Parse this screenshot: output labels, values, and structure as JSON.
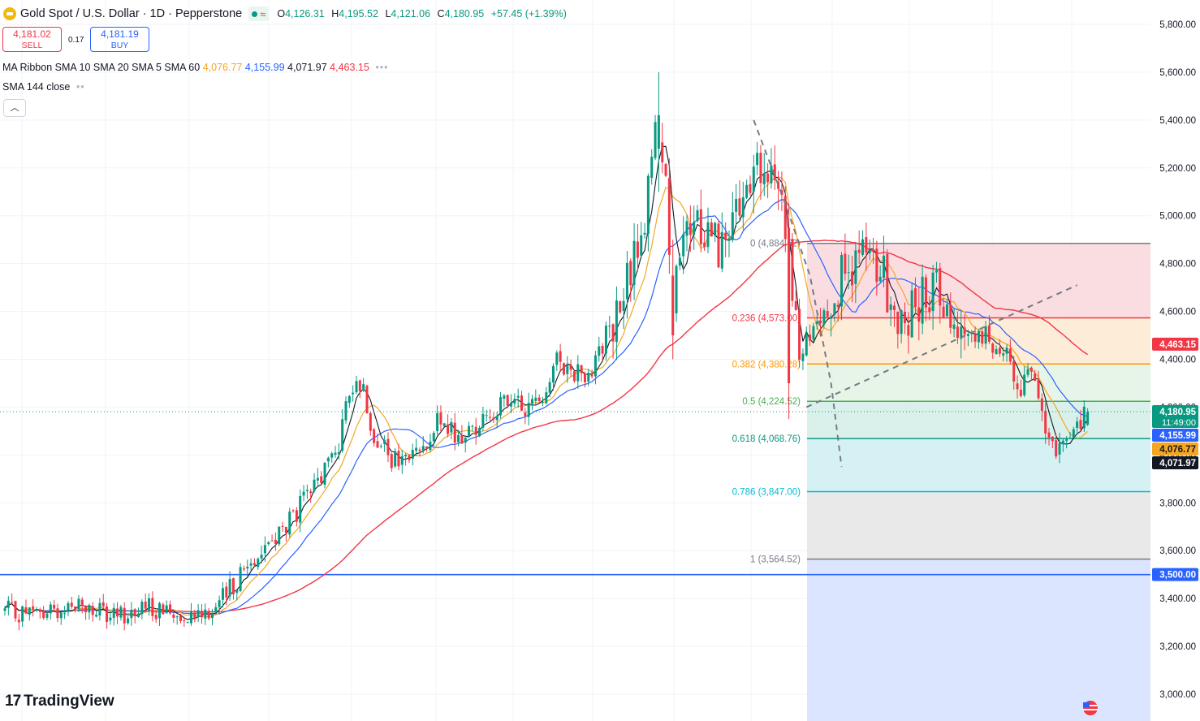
{
  "header": {
    "title": "Gold Spot / U.S. Dollar · 1D · Pepperstone",
    "o_label": "O",
    "o": "4,126.31",
    "h_label": "H",
    "h": "4,195.52",
    "l_label": "L",
    "l": "4,121.06",
    "c_label": "C",
    "c": "4,180.95",
    "change": "+57.45 (+1.39%)"
  },
  "trade": {
    "sell_price": "4,181.02",
    "sell_label": "SELL",
    "spread": "0.17",
    "buy_price": "4,181.19",
    "buy_label": "BUY"
  },
  "indicators": {
    "ma_ribbon": {
      "label": "MA Ribbon",
      "params": "SMA 10 SMA 20 SMA 5 SMA 60",
      "v1": "4,076.77",
      "v2": "4,155.99",
      "v3": "4,071.97",
      "v4": "4,463.15"
    },
    "sma144": {
      "label": "SMA 144 close"
    }
  },
  "colors": {
    "up": "#089981",
    "down": "#f23645",
    "sma5": "#131722",
    "sma10": "#f5a623",
    "sma20": "#2962ff",
    "sma60": "#f23645",
    "hline": "#2962ff"
  },
  "logo_text": "TradingView",
  "chart_data": {
    "type": "candlestick",
    "y_axis": {
      "min": 2900,
      "max": 5900,
      "ticks": [
        "5,800.00",
        "5,600.00",
        "5,400.00",
        "5,200.00",
        "5,000.00",
        "4,800.00",
        "4,600.00",
        "4,400.00",
        "4,200.00",
        "4,000.00",
        "3,800.00",
        "3,600.00",
        "3,400.00",
        "3,200.00",
        "3,000.00"
      ],
      "tick_values": [
        5800,
        5600,
        5400,
        5200,
        5000,
        4800,
        4600,
        4400,
        4200,
        4000,
        3800,
        3600,
        3400,
        3200,
        3000
      ]
    },
    "close_tracks": [
      {
        "from": 0,
        "to": 60,
        "points": [
          [
            0,
            3350
          ],
          [
            10,
            3330
          ],
          [
            20,
            3380
          ],
          [
            30,
            3320
          ],
          [
            40,
            3360
          ],
          [
            50,
            3340
          ],
          [
            60,
            3360
          ]
        ]
      },
      {
        "from": 60,
        "to": 95,
        "points": [
          [
            60,
            3360
          ],
          [
            70,
            3560
          ],
          [
            80,
            3700
          ],
          [
            88,
            3860
          ],
          [
            95,
            4050
          ]
        ]
      },
      {
        "from": 95,
        "to": 130,
        "points": [
          [
            95,
            4050
          ],
          [
            100,
            4360
          ],
          [
            105,
            4100
          ],
          [
            110,
            3960
          ],
          [
            117,
            4000
          ],
          [
            122,
            4130
          ],
          [
            130,
            4070
          ]
        ]
      },
      {
        "from": 130,
        "to": 165,
        "points": [
          [
            130,
            4070
          ],
          [
            140,
            4200
          ],
          [
            150,
            4200
          ],
          [
            158,
            4400
          ],
          [
            165,
            4330
          ]
        ]
      },
      {
        "from": 165,
        "to": 190,
        "points": [
          [
            165,
            4330
          ],
          [
            175,
            4600
          ],
          [
            182,
            5000
          ],
          [
            186,
            5400
          ],
          [
            188,
            5100
          ],
          [
            190,
            4650
          ]
        ]
      },
      {
        "from": 190,
        "to": 215,
        "points": [
          [
            190,
            4650
          ],
          [
            195,
            4950
          ],
          [
            200,
            4950
          ],
          [
            205,
            4850
          ],
          [
            210,
            5050
          ],
          [
            215,
            5200
          ]
        ]
      },
      {
        "from": 215,
        "to": 223,
        "points": [
          [
            215,
            5200
          ],
          [
            218,
            5100
          ],
          [
            221,
            5150
          ],
          [
            223,
            4800
          ]
        ]
      },
      {
        "from": 223,
        "to": 245,
        "points": [
          [
            223,
            4800
          ],
          [
            226,
            4400
          ],
          [
            230,
            4520
          ],
          [
            235,
            4680
          ],
          [
            240,
            4770
          ],
          [
            245,
            4840
          ]
        ]
      },
      {
        "from": 245,
        "to": 270,
        "points": [
          [
            245,
            4840
          ],
          [
            250,
            4730
          ],
          [
            255,
            4520
          ],
          [
            260,
            4650
          ],
          [
            265,
            4720
          ],
          [
            270,
            4560
          ]
        ]
      },
      {
        "from": 270,
        "to": 297,
        "points": [
          [
            270,
            4560
          ],
          [
            275,
            4500
          ],
          [
            280,
            4480
          ],
          [
            285,
            4450
          ],
          [
            288,
            4250
          ],
          [
            292,
            4320
          ],
          [
            297,
            4100
          ]
        ]
      },
      {
        "from": 297,
        "to": 308,
        "points": [
          [
            297,
            4100
          ],
          [
            300,
            4010
          ],
          [
            303,
            4060
          ],
          [
            306,
            4140
          ],
          [
            308,
            4181
          ]
        ]
      }
    ],
    "special_candles": [
      {
        "i": 186,
        "open": 5280,
        "high": 5600,
        "low": 5100,
        "close": 5420
      },
      {
        "i": 190,
        "open": 4750,
        "high": 4900,
        "low": 4400,
        "close": 4500
      },
      {
        "i": 223,
        "open": 4950,
        "high": 5050,
        "low": 4150,
        "close": 4300
      },
      {
        "i": 308,
        "open": 4126.31,
        "high": 4195.52,
        "low": 4121.06,
        "close": 4180.95
      }
    ],
    "sma5_value": 4071.97,
    "sma10_value": 4076.77,
    "sma20_value": 4155.99,
    "sma60_value": 4463.15,
    "horizontal_line": {
      "value": 3500,
      "label": "3,500.00"
    },
    "fibonacci": {
      "start_value": 4884.52,
      "levels": [
        {
          "ratio": "0",
          "value": 4884.52,
          "label": "0 (4,884.52)",
          "color": "#787b86",
          "fill": "#f8d7da"
        },
        {
          "ratio": "0.236",
          "value": 4573.0,
          "label": "0.236 (4,573.00)",
          "color": "#f23645",
          "fill": "#fde9d1"
        },
        {
          "ratio": "0.382",
          "value": 4380.28,
          "label": "0.382 (4,380.28)",
          "color": "#ff9800",
          "fill": "#e2f3e4"
        },
        {
          "ratio": "0.5",
          "value": 4224.52,
          "label": "0.5 (4,224.52)",
          "color": "#4caf50",
          "fill": "#d3eee7"
        },
        {
          "ratio": "0.618",
          "value": 4068.76,
          "label": "0.618 (4,068.76)",
          "color": "#089981",
          "fill": "#cfeff2"
        },
        {
          "ratio": "0.786",
          "value": 3847.0,
          "label": "0.786 (3,847.00)",
          "color": "#00bcd4",
          "fill": "#e5e5e5"
        },
        {
          "ratio": "1",
          "value": 3564.52,
          "label": "1 (3,564.52)",
          "color": "#787b86",
          "fill": "#d6e0ff"
        }
      ]
    },
    "trendline_dashed": {
      "from": [
        228,
        4200
      ],
      "to": [
        305,
        4710
      ]
    },
    "fib_trend_dashed": [
      [
        213,
        5400
      ],
      [
        222,
        5050
      ],
      [
        229,
        4750
      ],
      [
        235,
        4300
      ],
      [
        238,
        3950
      ]
    ],
    "price_labels": [
      {
        "value": 4463.15,
        "text": "4,463.15",
        "bg": "#f23645",
        "fg": "#ffffff"
      },
      {
        "value": 4180.95,
        "text": "4,180.95",
        "sub": "11:49:00",
        "bg": "#089981",
        "fg": "#ffffff"
      },
      {
        "value": 4155.99,
        "text": "4,155.99",
        "bg": "#2962ff",
        "fg": "#ffffff"
      },
      {
        "value": 4076.77,
        "text": "4,076.77",
        "bg": "#f5a623",
        "fg": "#131722"
      },
      {
        "value": 4071.97,
        "text": "4,071.97",
        "bg": "#131722",
        "fg": "#ffffff"
      },
      {
        "value": 3500,
        "text": "3,500.00",
        "bg": "#2962ff",
        "fg": "#ffffff"
      }
    ]
  }
}
